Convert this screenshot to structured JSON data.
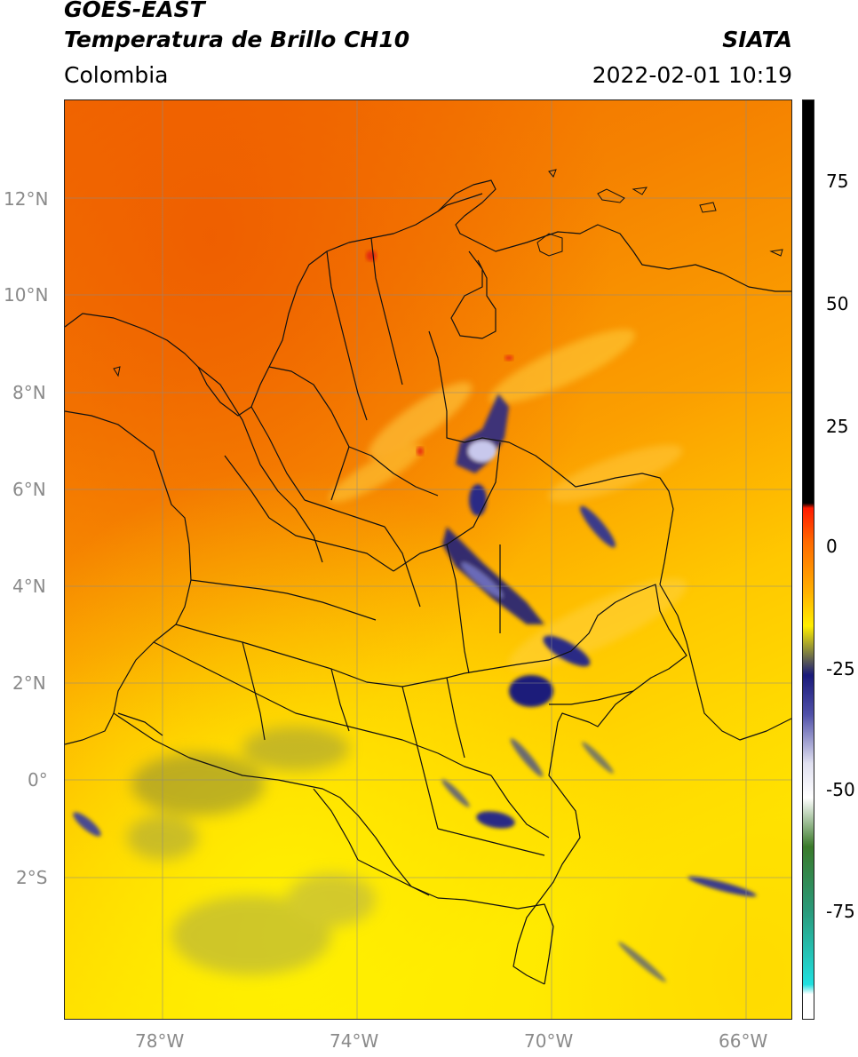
{
  "header": {
    "satellite": "GOES-EAST",
    "product": "Temperatura de Brillo CH10",
    "region": "Colombia",
    "agency": "SIATA",
    "timestamp": "2022-02-01 10:19"
  },
  "map": {
    "lat_ticks": [
      "12°N",
      "10°N",
      "8°N",
      "6°N",
      "4°N",
      "2°N",
      "0°",
      "2°S"
    ],
    "lon_ticks": [
      "78°W",
      "74°W",
      "70°W",
      "66°W"
    ],
    "extent_lon": [
      -80,
      -65
    ],
    "extent_lat": [
      -5,
      14
    ]
  },
  "colorbar": {
    "labels": [
      "75",
      "50",
      "25",
      "0",
      "-25",
      "-50",
      "-75"
    ],
    "range": [
      -97,
      90
    ],
    "stops": [
      {
        "value": 90,
        "color": "#000000"
      },
      {
        "value": 8,
        "color": "#000000"
      },
      {
        "value": 7,
        "color": "#ff1a00"
      },
      {
        "value": 0,
        "color": "#ff6a00"
      },
      {
        "value": -10,
        "color": "#ffb000"
      },
      {
        "value": -17,
        "color": "#ffee00"
      },
      {
        "value": -22,
        "color": "#8a8a3a"
      },
      {
        "value": -27,
        "color": "#1a1a7a"
      },
      {
        "value": -35,
        "color": "#5050a8"
      },
      {
        "value": -45,
        "color": "#e0e0f0"
      },
      {
        "value": -52,
        "color": "#ffffff"
      },
      {
        "value": -62,
        "color": "#3a7a2a"
      },
      {
        "value": -75,
        "color": "#2a9a7a"
      },
      {
        "value": -90,
        "color": "#20e0e0"
      },
      {
        "value": -92,
        "color": "#ffffff"
      }
    ]
  }
}
